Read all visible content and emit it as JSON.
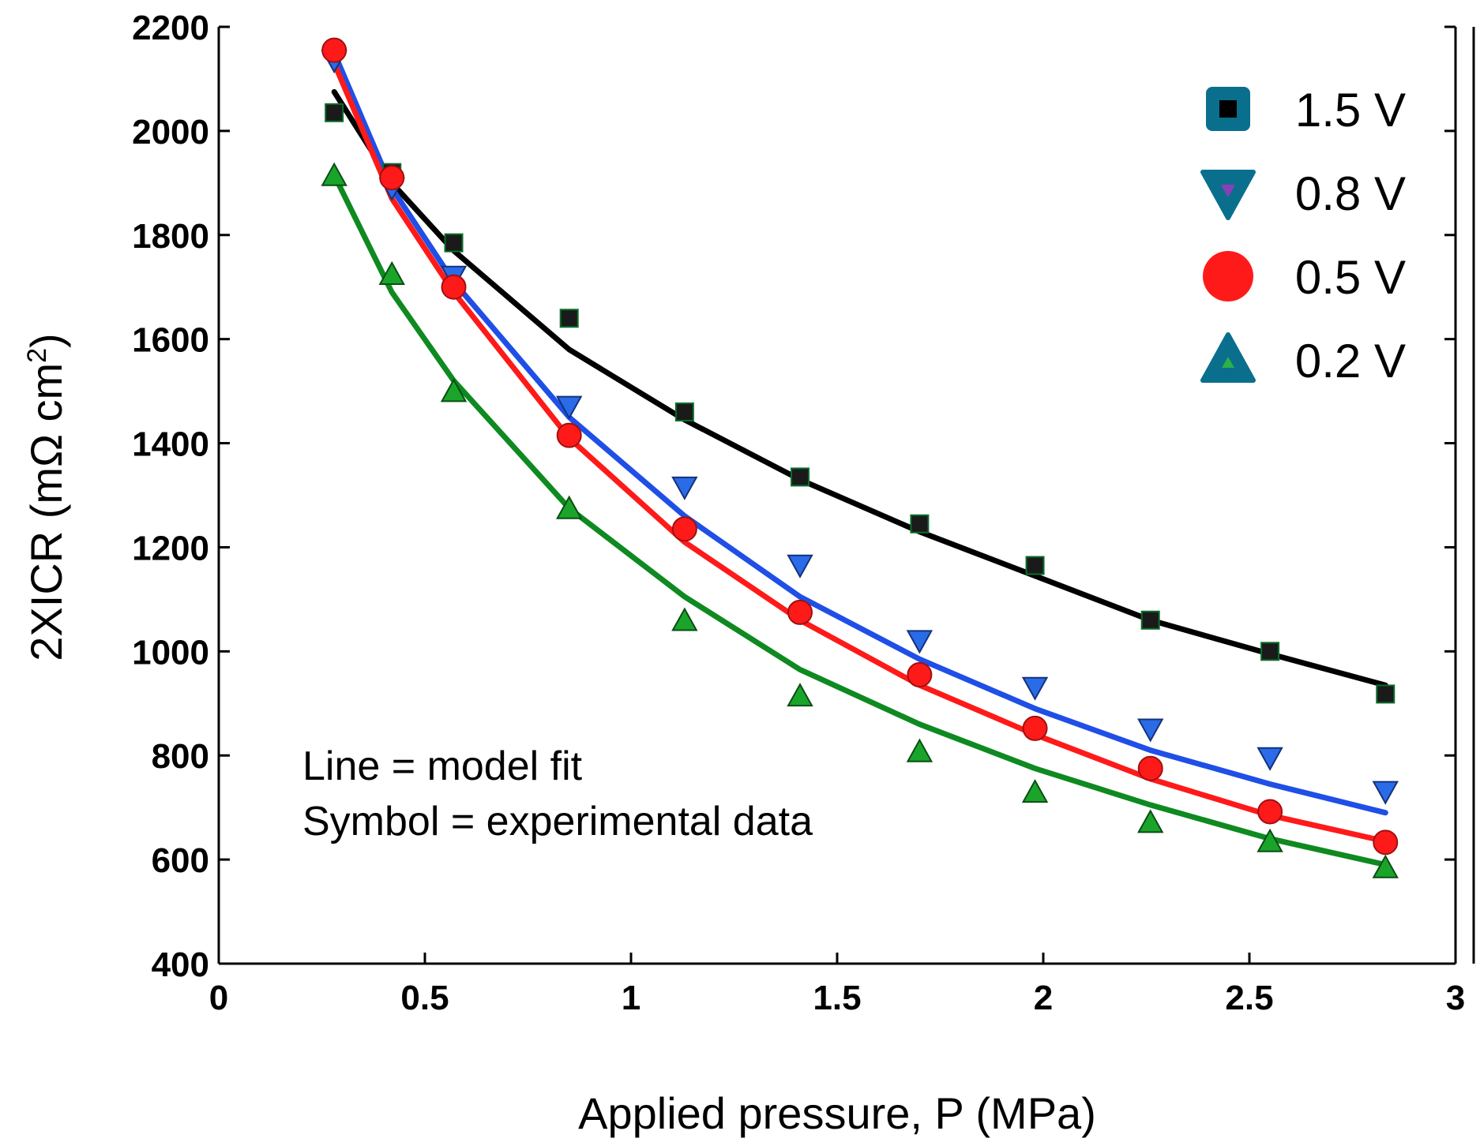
{
  "chart_data": {
    "type": "line",
    "title": "",
    "xlabel": "Applied pressure, P (MPa)",
    "ylabel_main": "2XICR (mΩ cm",
    "ylabel_sup": "2",
    "ylabel_close": ")",
    "xlim": [
      0,
      3
    ],
    "ylim": [
      400,
      2200
    ],
    "xticks": [
      0,
      0.5,
      1,
      1.5,
      2,
      2.5,
      3
    ],
    "xtick_labels": [
      "0",
      "0.5",
      "1",
      "1.5",
      "2",
      "2.5",
      "3"
    ],
    "yticks": [
      400,
      600,
      800,
      1000,
      1200,
      1400,
      1600,
      1800,
      2000,
      2200
    ],
    "ytick_labels": [
      "400",
      "600",
      "800",
      "1000",
      "1200",
      "1400",
      "1600",
      "1800",
      "2000",
      "2200"
    ],
    "grid": false,
    "legend_position": "top-right",
    "annotations": [
      "Line = model fit",
      "Symbol = experimental data"
    ],
    "x": [
      0.28,
      0.42,
      0.57,
      0.85,
      1.13,
      1.41,
      1.7,
      1.98,
      2.26,
      2.55,
      2.83
    ],
    "series": [
      {
        "name": "1.5 V",
        "marker": "square",
        "color": "#000000",
        "marker_fill": "#1a1a1a",
        "marker_edge": "#0a6e2a",
        "legend_fill": "#0a6f8c",
        "values": [
          2035,
          1920,
          1785,
          1640,
          1460,
          1335,
          1245,
          1165,
          1060,
          1000,
          918
        ],
        "fit": [
          2075,
          1900,
          1770,
          1580,
          1445,
          1330,
          1230,
          1145,
          1060,
          995,
          935
        ]
      },
      {
        "name": "0.8 V",
        "marker": "triangle-down",
        "color": "#1f4fe6",
        "marker_fill": "#2a6be8",
        "marker_edge": "#15327a",
        "legend_fill": "#0a6f8c",
        "values": [
          2135,
          1890,
          1720,
          1470,
          1315,
          1165,
          1020,
          930,
          850,
          795,
          730
        ],
        "fit": [
          2150,
          1890,
          1710,
          1450,
          1260,
          1105,
          985,
          890,
          810,
          745,
          690
        ]
      },
      {
        "name": "0.5 V",
        "marker": "circle",
        "color": "#ff1a1a",
        "marker_fill": "#ff1a1a",
        "marker_edge": "#a01010",
        "legend_fill": "#ff1a1a",
        "values": [
          2155,
          1910,
          1700,
          1415,
          1235,
          1075,
          955,
          852,
          775,
          692,
          633
        ],
        "fit": [
          2130,
          1870,
          1690,
          1410,
          1210,
          1060,
          935,
          840,
          755,
          685,
          635
        ]
      },
      {
        "name": "0.2 V",
        "marker": "triangle-up",
        "color": "#0e8a20",
        "marker_fill": "#1aa52a",
        "marker_edge": "#0a4d14",
        "legend_fill": "#0a6f8c",
        "values": [
          1915,
          1725,
          1500,
          1275,
          1060,
          915,
          808,
          730,
          672,
          635,
          585
        ],
        "fit": [
          1915,
          1690,
          1520,
          1275,
          1105,
          965,
          860,
          775,
          705,
          640,
          590
        ]
      }
    ]
  }
}
